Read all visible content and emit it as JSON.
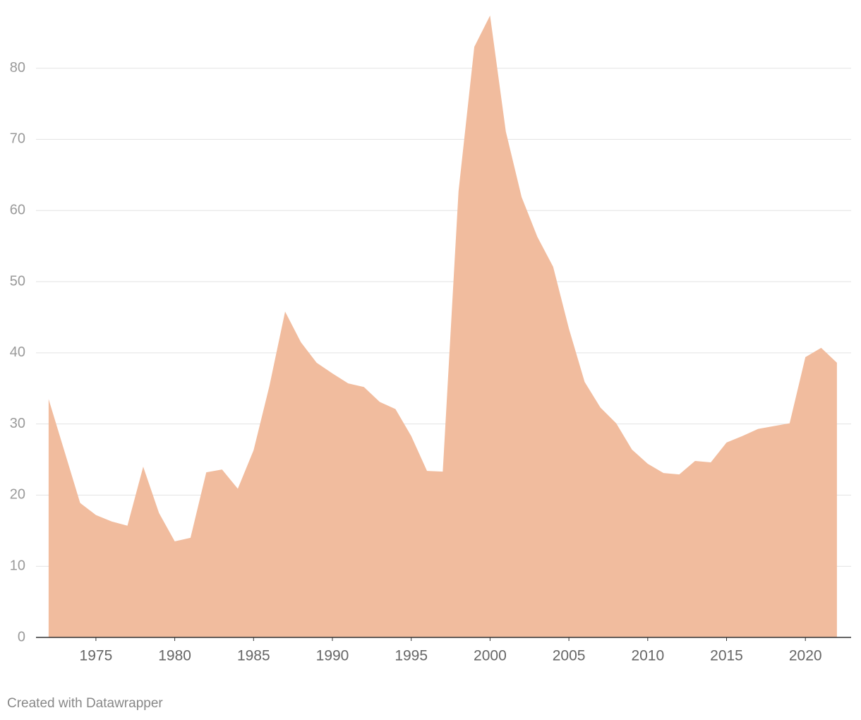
{
  "chart_data": {
    "type": "area",
    "x": [
      1972,
      1973,
      1974,
      1975,
      1976,
      1977,
      1978,
      1979,
      1980,
      1981,
      1982,
      1983,
      1984,
      1985,
      1986,
      1987,
      1988,
      1989,
      1990,
      1991,
      1992,
      1993,
      1994,
      1995,
      1996,
      1997,
      1998,
      1999,
      2000,
      2001,
      2002,
      2003,
      2004,
      2005,
      2006,
      2007,
      2008,
      2009,
      2010,
      2011,
      2012,
      2013,
      2014,
      2015,
      2016,
      2017,
      2018,
      2019,
      2020,
      2021,
      2022
    ],
    "values": [
      33.5,
      26.2,
      18.9,
      17.2,
      16.3,
      15.7,
      24,
      17.5,
      13.5,
      14,
      23.2,
      23.6,
      20.9,
      26.3,
      35.3,
      45.8,
      41.5,
      38.6,
      37.1,
      35.7,
      35.2,
      33.1,
      32.1,
      28.3,
      23.4,
      23.3,
      62.7,
      83,
      87.4,
      71.1,
      61.9,
      56.3,
      52.1,
      43.4,
      35.9,
      32.3,
      30.1,
      26.4,
      24.4,
      23.1,
      22.9,
      24.8,
      24.6,
      27.4,
      28.3,
      29.3,
      29.7,
      30.1,
      39.4,
      40.7,
      38.6
    ],
    "color": "#f1bc9e",
    "xlim": [
      1971.2,
      2022.9
    ],
    "xticks": [
      1975,
      1980,
      1985,
      1990,
      1995,
      2000,
      2005,
      2010,
      2015,
      2020
    ],
    "ylim": [
      0,
      88
    ],
    "yticks": [
      0,
      10,
      20,
      30,
      40,
      50,
      60,
      70,
      80
    ],
    "grid": true,
    "footer": "Created with Datawrapper"
  }
}
